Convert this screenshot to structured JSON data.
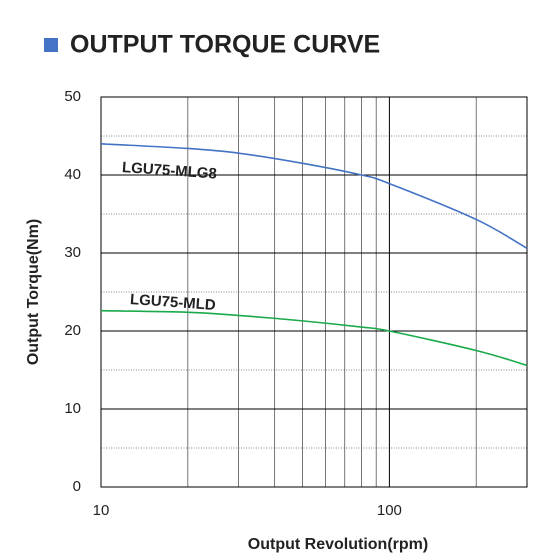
{
  "chart_data": {
    "type": "line",
    "title": "OUTPUT TORQUE CURVE",
    "x_label": "Output Revolution(rpm)",
    "y_label": "Output Torque(Nm)",
    "x_scale": "log",
    "x": [
      10,
      20,
      30,
      50,
      80,
      100,
      200,
      300
    ],
    "series": [
      {
        "name": "LGU75-MLG8",
        "color": "#4472c4",
        "values": [
          44,
          43.4,
          42.8,
          41.5,
          40,
          38.9,
          34.3,
          30.6
        ]
      },
      {
        "name": "LGU75-MLD",
        "color": "#1aaa4a",
        "values": [
          22.6,
          22.4,
          22,
          21.3,
          20.5,
          20,
          17.5,
          15.6
        ]
      }
    ],
    "xlim": [
      10,
      300
    ],
    "xticks": [
      10,
      100
    ],
    "xminorticks": [
      20,
      30,
      40,
      50,
      60,
      70,
      80,
      90,
      200
    ],
    "ylim": [
      0,
      50
    ],
    "yticks": [
      0,
      10,
      20,
      30,
      40,
      50
    ],
    "yminorticks": [
      5,
      15,
      25,
      35,
      45
    ],
    "grid": true
  }
}
